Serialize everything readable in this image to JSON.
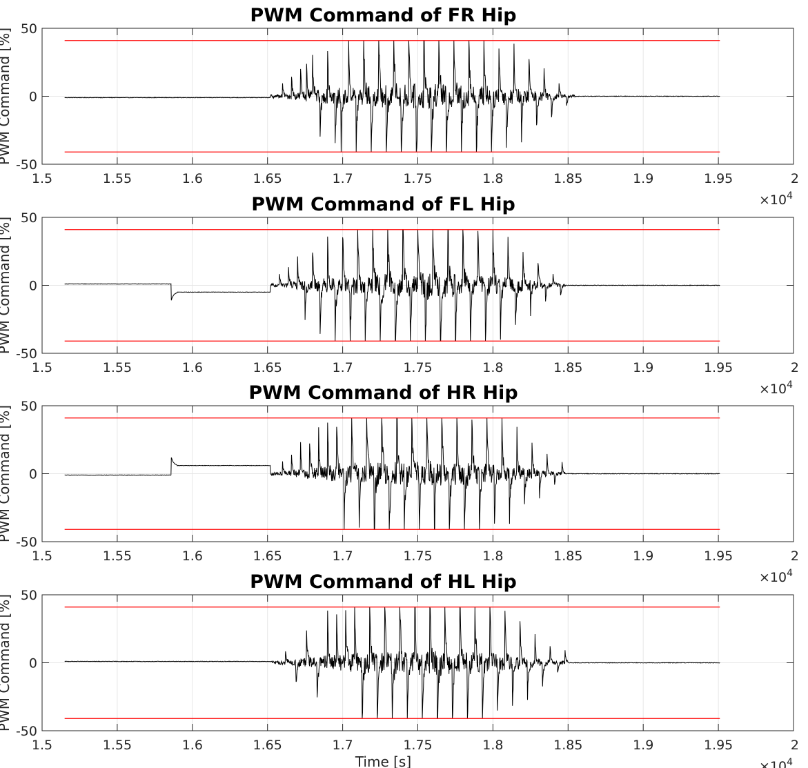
{
  "figure": {
    "xlabel": "Time [s]",
    "ylabel": "PWM Command [%]",
    "x_exponent_label": "×10",
    "x_exponent": "4",
    "colors": {
      "signal": "#000000",
      "limit": "#ff0000",
      "grid": "#e6e6e6",
      "axis": "#262626",
      "background": "#ffffff"
    }
  },
  "chart_data": [
    {
      "type": "line",
      "title": "PWM Command of FR Hip",
      "xlabel": "",
      "ylabel": "PWM Command [%]",
      "xlim": [
        15000,
        20000
      ],
      "ylim": [
        -50,
        50
      ],
      "xticks": [
        15000,
        15500,
        16000,
        16500,
        17000,
        17500,
        18000,
        18500,
        19000,
        19500,
        20000
      ],
      "xtick_labels": [
        "1.5",
        "1.55",
        "1.6",
        "1.65",
        "1.7",
        "1.75",
        "1.8",
        "1.85",
        "1.9",
        "1.95",
        "2"
      ],
      "yticks": [
        -50,
        0,
        50
      ],
      "ytick_labels": [
        "-50",
        "0",
        "50"
      ],
      "grid": true,
      "limits": [
        41,
        -41
      ],
      "signal": {
        "x_start": 15150,
        "x_end": 19510,
        "baseline_before": -1,
        "baseline_after": 0,
        "active_start": 16520,
        "active_end": 18550,
        "peaks": [
          16600,
          16660,
          16720,
          16760,
          16800,
          16850,
          16900,
          16950,
          16990,
          17040,
          17090,
          17140,
          17190,
          17240,
          17290,
          17340,
          17390,
          17440,
          17490,
          17540,
          17590,
          17640,
          17690,
          17740,
          17790,
          17840,
          17890,
          17940,
          17990,
          18040,
          18090,
          18140,
          18190,
          18240,
          18290,
          18340,
          18390,
          18440,
          18490
        ]
      }
    },
    {
      "type": "line",
      "title": "PWM Command of FL Hip",
      "xlabel": "",
      "ylabel": "PWM Command [%]",
      "xlim": [
        15000,
        20000
      ],
      "ylim": [
        -50,
        50
      ],
      "xticks": [
        15000,
        15500,
        16000,
        16500,
        17000,
        17500,
        18000,
        18500,
        19000,
        19500,
        20000
      ],
      "xtick_labels": [
        "1.5",
        "1.55",
        "1.6",
        "1.65",
        "1.7",
        "1.75",
        "1.8",
        "1.85",
        "1.9",
        "1.95",
        "2"
      ],
      "yticks": [
        -50,
        0,
        50
      ],
      "ytick_labels": [
        "-50",
        "0",
        "50"
      ],
      "grid": true,
      "limits": [
        41,
        -41
      ],
      "signal": {
        "x_start": 15150,
        "x_end": 19510,
        "baseline_before": 1,
        "baseline_after": 0,
        "step_at": 15860,
        "step_value": -5,
        "active_start": 16520,
        "active_end": 18480,
        "peaks": [
          16580,
          16640,
          16700,
          16750,
          16800,
          16850,
          16900,
          16950,
          17000,
          17050,
          17100,
          17150,
          17200,
          17250,
          17300,
          17350,
          17400,
          17450,
          17500,
          17550,
          17600,
          17650,
          17700,
          17750,
          17800,
          17850,
          17900,
          17950,
          18000,
          18050,
          18100,
          18150,
          18200,
          18250,
          18300,
          18350,
          18400,
          18450
        ]
      }
    },
    {
      "type": "line",
      "title": "PWM Command of HR Hip",
      "xlabel": "",
      "ylabel": "PWM Command [%]",
      "xlim": [
        15000,
        20000
      ],
      "ylim": [
        -50,
        50
      ],
      "xticks": [
        15000,
        15500,
        16000,
        16500,
        17000,
        17500,
        18000,
        18500,
        19000,
        19500,
        20000
      ],
      "xtick_labels": [
        "1.5",
        "1.55",
        "1.6",
        "1.65",
        "1.7",
        "1.75",
        "1.8",
        "1.85",
        "1.9",
        "1.95",
        "2"
      ],
      "yticks": [
        -50,
        0,
        50
      ],
      "ytick_labels": [
        "-50",
        "0",
        "50"
      ],
      "grid": true,
      "limits": [
        41,
        -41
      ],
      "signal": {
        "x_start": 15150,
        "x_end": 19510,
        "baseline_before": -1,
        "baseline_after": 0,
        "step_at": 15860,
        "step_value": 6,
        "active_start": 16520,
        "active_end": 18480,
        "peaks": [
          16600,
          16660,
          16720,
          16780,
          16840,
          16900,
          16960,
          17010,
          17060,
          17110,
          17160,
          17210,
          17260,
          17310,
          17360,
          17410,
          17460,
          17510,
          17560,
          17610,
          17660,
          17710,
          17760,
          17810,
          17860,
          17910,
          17960,
          18010,
          18060,
          18110,
          18160,
          18210,
          18260,
          18310,
          18360,
          18410,
          18460
        ]
      }
    },
    {
      "type": "line",
      "title": "PWM Command of HL Hip",
      "xlabel": "Time [s]",
      "ylabel": "PWM Command [%]",
      "xlim": [
        15000,
        20000
      ],
      "ylim": [
        -50,
        50
      ],
      "xticks": [
        15000,
        15500,
        16000,
        16500,
        17000,
        17500,
        18000,
        18500,
        19000,
        19500,
        20000
      ],
      "xtick_labels": [
        "1.5",
        "1.55",
        "1.6",
        "1.65",
        "1.7",
        "1.75",
        "1.8",
        "1.85",
        "1.9",
        "1.95",
        "2"
      ],
      "yticks": [
        -50,
        0,
        50
      ],
      "ytick_labels": [
        "-50",
        "0",
        "50"
      ],
      "grid": true,
      "limits": [
        41,
        -41
      ],
      "signal": {
        "x_start": 15150,
        "x_end": 19510,
        "baseline_before": 1,
        "baseline_after": 0,
        "active_start": 16530,
        "active_end": 18500,
        "peaks": [
          16620,
          16690,
          16760,
          16830,
          16900,
          16960,
          17020,
          17080,
          17130,
          17180,
          17230,
          17280,
          17330,
          17380,
          17430,
          17480,
          17530,
          17580,
          17630,
          17680,
          17730,
          17780,
          17830,
          17880,
          17930,
          17980,
          18030,
          18080,
          18130,
          18180,
          18230,
          18280,
          18330,
          18380,
          18430,
          18480
        ]
      }
    }
  ]
}
